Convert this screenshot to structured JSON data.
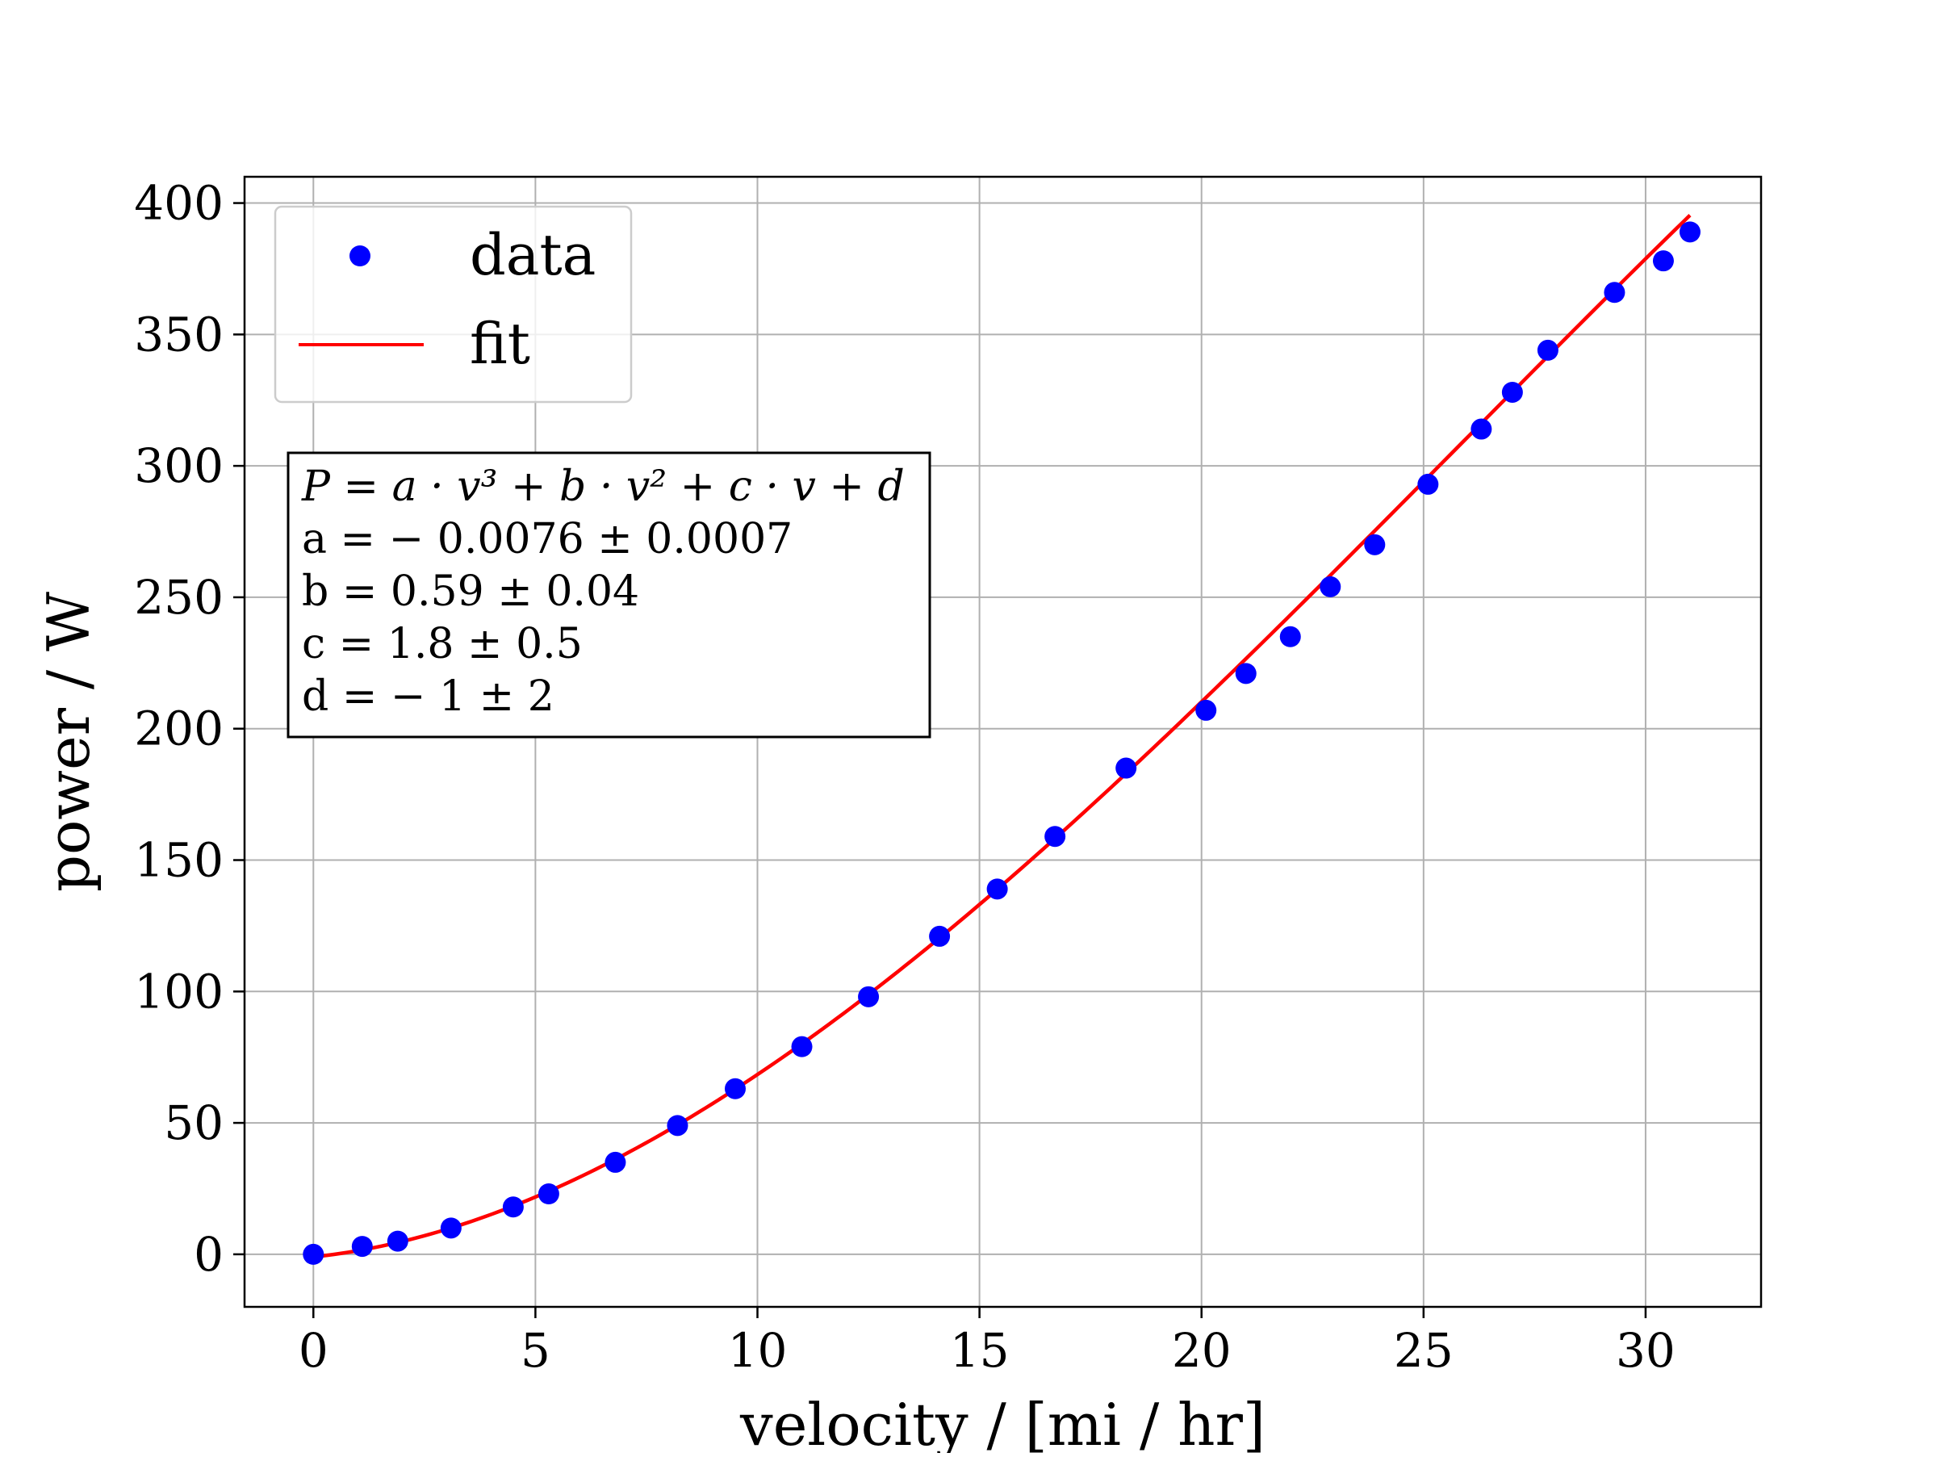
{
  "chart_data": {
    "type": "scatter",
    "title": "",
    "xlabel": "velocity / [mi / hr]",
    "ylabel": "power / W",
    "xlim": [
      -1.55,
      32.6
    ],
    "ylim": [
      -20,
      410
    ],
    "xticks": [
      "0",
      "5",
      "10",
      "15",
      "20",
      "25",
      "30"
    ],
    "yticks": [
      "0",
      "50",
      "100",
      "150",
      "200",
      "250",
      "300",
      "350",
      "400"
    ],
    "grid": true,
    "legend_position": "top-left",
    "series": [
      {
        "name": "data",
        "kind": "points",
        "color": "#0000ff",
        "x": [
          0,
          1.1,
          1.9,
          3.1,
          4.5,
          5.3,
          6.8,
          8.2,
          9.5,
          11.0,
          12.5,
          14.1,
          15.4,
          16.7,
          18.3,
          20.1,
          21.0,
          22.0,
          22.9,
          23.9,
          25.1,
          26.3,
          27.0,
          27.8,
          29.3,
          30.4,
          31.0
        ],
        "y": [
          0,
          3,
          5,
          10,
          18,
          23,
          35,
          49,
          63,
          79,
          98,
          121,
          139,
          159,
          185,
          207,
          221,
          235,
          254,
          270,
          293,
          314,
          328,
          344,
          366,
          378,
          389
        ]
      },
      {
        "name": "fit",
        "kind": "line",
        "color": "#ff0000",
        "model": {
          "a": -0.0076,
          "b": 0.59,
          "c": 1.8,
          "d": -1
        },
        "x_range": [
          0,
          31.0
        ]
      }
    ],
    "annotation": {
      "lines": [
        "P = a · v³ + b · v² + c · v + d",
        "a =  − 0.0076 ± 0.0007",
        "b = 0.59 ± 0.04",
        "c = 1.8 ± 0.5",
        "d =  − 1 ± 2"
      ]
    }
  }
}
